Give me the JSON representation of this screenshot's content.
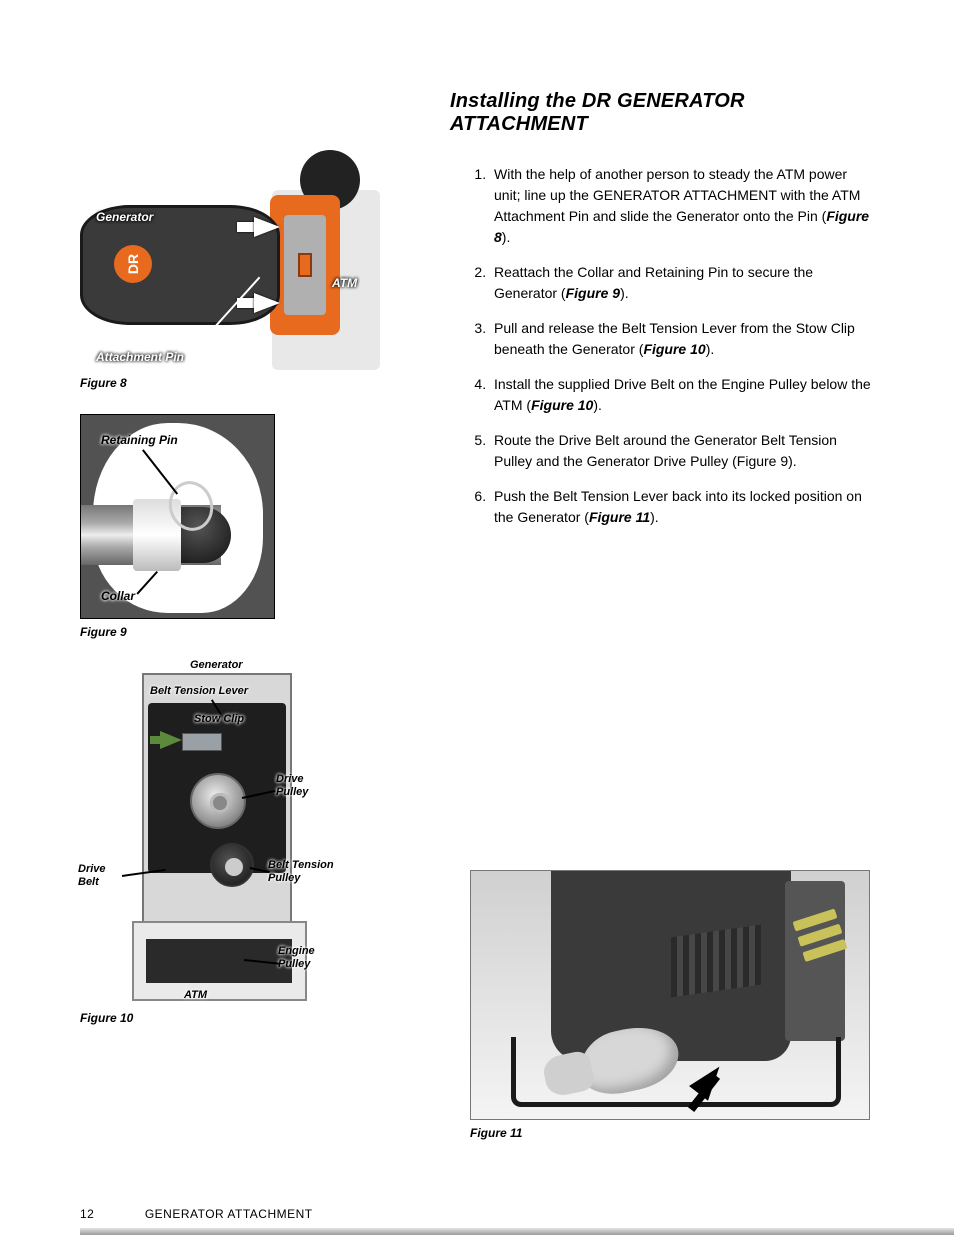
{
  "title": "Installing the DR GENERATOR ATTACHMENT",
  "steps": [
    {
      "pre": "With the help of another person to steady the ATM power unit; line up the GENERATOR ATTACHMENT with the ATM Attachment Pin and slide the Generator onto the Pin (",
      "ref": "Figure 8",
      "post": ")."
    },
    {
      "pre": "Reattach the Collar and Retaining Pin to secure the Generator (",
      "ref": "Figure 9",
      "post": ")."
    },
    {
      "pre": "Pull and release the Belt Tension Lever from the Stow Clip beneath the Generator (",
      "ref": "Figure 10",
      "post": ")."
    },
    {
      "pre": "Install the supplied Drive Belt on the Engine Pulley below the ATM (",
      "ref": "Figure 10",
      "post": ")."
    },
    {
      "pre": "Route the Drive Belt around the Generator Belt Tension Pulley and the Generator Drive Pulley (Figure 9).",
      "ref": "",
      "post": ""
    },
    {
      "pre": "Push the Belt Tension Lever back into its locked position on the Generator (",
      "ref": "Figure 11",
      "post": ")."
    }
  ],
  "fig8": {
    "caption": "Figure 8",
    "labels": {
      "generator": "Generator",
      "attachment_pin": "Attachment Pin",
      "atm": "ATM",
      "logo": "DR"
    }
  },
  "fig9": {
    "caption": "Figure 9",
    "labels": {
      "retaining_pin": "Retaining Pin",
      "collar": "Collar"
    }
  },
  "fig10": {
    "caption": "Figure 10",
    "labels": {
      "generator": "Generator",
      "belt_tension_lever": "Belt Tension Lever",
      "stow_clip": "Stow Clip",
      "drive_pulley": "Drive Pulley",
      "drive_belt": "Drive Belt",
      "belt_tension_pulley": "Belt Tension Pulley",
      "engine_pulley": "Engine Pulley",
      "atm": "ATM"
    }
  },
  "fig11": {
    "caption": "Figure 11"
  },
  "footer": {
    "page": "12",
    "title": "GENERATOR ATTACHMENT"
  },
  "colors": {
    "orange": "#e86a1f",
    "text": "#000000",
    "bg": "#ffffff"
  }
}
